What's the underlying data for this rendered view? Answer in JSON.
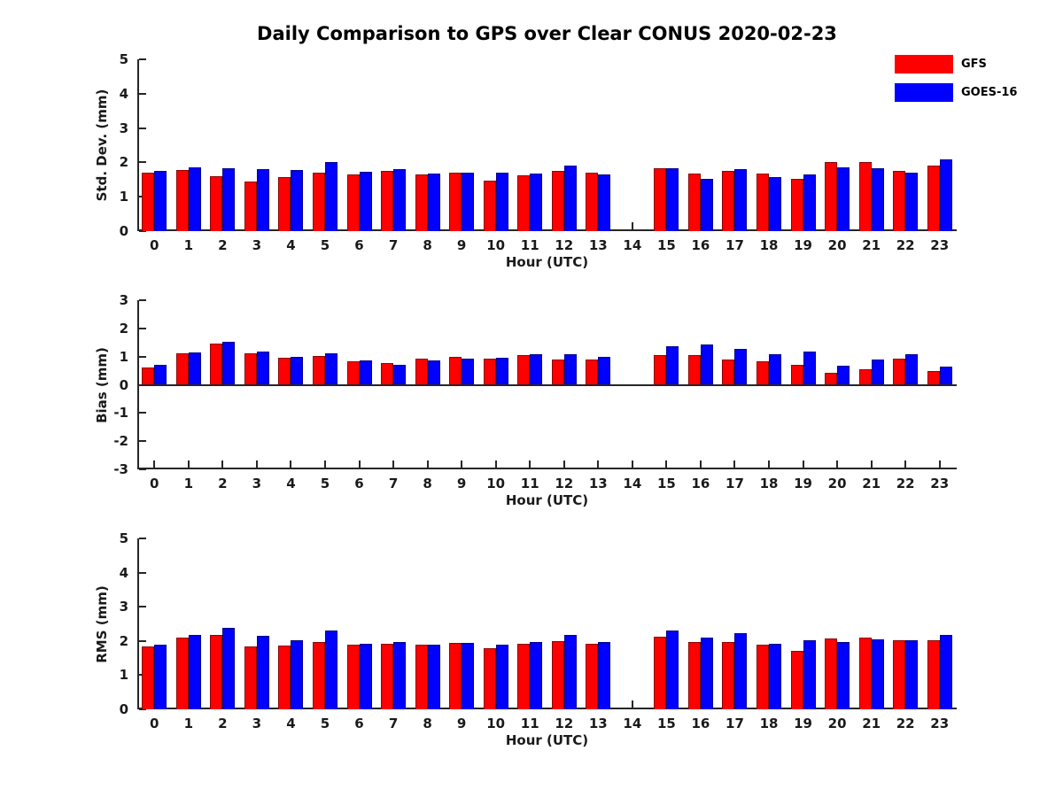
{
  "title": "Daily Comparison to GPS over Clear CONUS 2020-02-23",
  "legend": {
    "entries": [
      {
        "label": "GFS",
        "color": "#ff0000"
      },
      {
        "label": "GOES-16",
        "color": "#0000ff"
      }
    ]
  },
  "colors": {
    "gfs": "#ff0000",
    "goes16": "#0000ff",
    "axis": "#262626",
    "text": "#1a1a1a",
    "background": "#ffffff"
  },
  "chart_data": [
    {
      "type": "bar",
      "title": "Daily Comparison to GPS over Clear CONUS 2020-02-23",
      "ylabel": "Std. Dev. (mm)",
      "xlabel": "Hour (UTC)",
      "ylim": [
        0,
        5
      ],
      "yticks": [
        0,
        1,
        2,
        3,
        4,
        5
      ],
      "grid": false,
      "legend_position": "upper-right-outside",
      "categories": [
        0,
        1,
        2,
        3,
        4,
        5,
        6,
        7,
        8,
        9,
        10,
        11,
        12,
        13,
        14,
        15,
        16,
        17,
        18,
        19,
        20,
        21,
        22,
        23
      ],
      "missing_hours": [
        14
      ],
      "series": [
        {
          "name": "GFS",
          "color": "#ff0000",
          "values": [
            1.7,
            1.78,
            1.6,
            1.45,
            1.57,
            1.7,
            1.65,
            1.76,
            1.65,
            1.7,
            1.47,
            1.62,
            1.75,
            1.7,
            null,
            1.84,
            1.68,
            1.75,
            1.67,
            1.53,
            2.02,
            2.0,
            1.75,
            1.92
          ]
        },
        {
          "name": "GOES-16",
          "color": "#0000ff",
          "values": [
            1.75,
            1.85,
            1.82,
            1.8,
            1.78,
            2.02,
            1.72,
            1.8,
            1.68,
            1.7,
            1.7,
            1.68,
            1.9,
            1.66,
            null,
            1.82,
            1.53,
            1.8,
            1.58,
            1.65,
            1.86,
            1.82,
            1.7,
            2.08
          ]
        }
      ]
    },
    {
      "type": "bar",
      "title": "",
      "ylabel": "Bias (mm)",
      "xlabel": "Hour (UTC)",
      "ylim": [
        -3,
        3
      ],
      "yticks": [
        -3,
        -2,
        -1,
        0,
        1,
        2,
        3
      ],
      "grid": false,
      "categories": [
        0,
        1,
        2,
        3,
        4,
        5,
        6,
        7,
        8,
        9,
        10,
        11,
        12,
        13,
        14,
        15,
        16,
        17,
        18,
        19,
        20,
        21,
        22,
        23
      ],
      "missing_hours": [
        14
      ],
      "series": [
        {
          "name": "GFS",
          "color": "#ff0000",
          "values": [
            0.62,
            1.1,
            1.45,
            1.12,
            0.97,
            1.02,
            0.82,
            0.78,
            0.92,
            0.98,
            0.93,
            1.05,
            0.91,
            0.88,
            null,
            1.05,
            1.05,
            0.88,
            0.82,
            0.72,
            0.42,
            0.55,
            0.93,
            0.5
          ]
        },
        {
          "name": "GOES-16",
          "color": "#0000ff",
          "values": [
            0.7,
            1.15,
            1.52,
            1.18,
            0.98,
            1.12,
            0.85,
            0.72,
            0.86,
            0.92,
            0.95,
            1.08,
            1.07,
            1.0,
            null,
            1.37,
            1.42,
            1.28,
            1.07,
            1.17,
            0.68,
            0.88,
            1.07,
            0.63
          ]
        }
      ]
    },
    {
      "type": "bar",
      "title": "",
      "ylabel": "RMS (mm)",
      "xlabel": "Hour (UTC)",
      "ylim": [
        0,
        5
      ],
      "yticks": [
        0,
        1,
        2,
        3,
        4,
        5
      ],
      "grid": false,
      "categories": [
        0,
        1,
        2,
        3,
        4,
        5,
        6,
        7,
        8,
        9,
        10,
        11,
        12,
        13,
        14,
        15,
        16,
        17,
        18,
        19,
        20,
        21,
        22,
        23
      ],
      "missing_hours": [
        14
      ],
      "series": [
        {
          "name": "GFS",
          "color": "#ff0000",
          "values": [
            1.85,
            2.1,
            2.17,
            1.85,
            1.87,
            1.97,
            1.88,
            1.92,
            1.88,
            1.95,
            1.78,
            1.93,
            2.0,
            1.92,
            null,
            2.13,
            1.97,
            1.98,
            1.89,
            1.72,
            2.08,
            2.11,
            2.01,
            2.01
          ]
        },
        {
          "name": "GOES-16",
          "color": "#0000ff",
          "values": [
            1.9,
            2.18,
            2.38,
            2.15,
            2.03,
            2.3,
            1.91,
            1.97,
            1.88,
            1.95,
            1.9,
            1.96,
            2.18,
            1.96,
            null,
            2.31,
            2.1,
            2.24,
            1.91,
            2.03,
            1.98,
            2.05,
            2.02,
            2.18
          ]
        }
      ]
    }
  ]
}
